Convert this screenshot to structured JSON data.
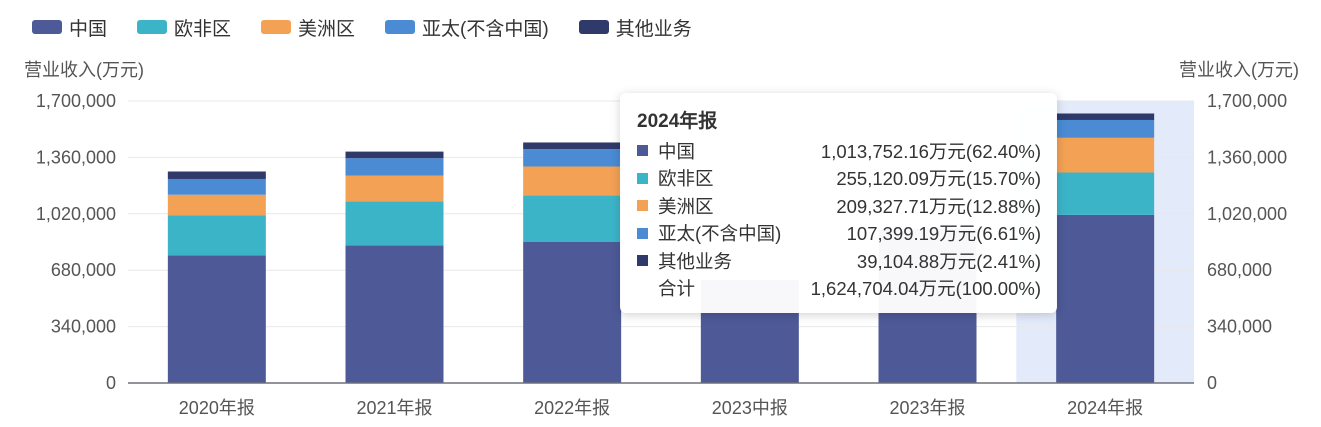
{
  "chart_data": {
    "type": "bar",
    "stacked": true,
    "categories": [
      "2020年报",
      "2021年报",
      "2022年报",
      "2023中报",
      "2023年报",
      "2024年报"
    ],
    "series": [
      {
        "name": "中国",
        "color": "#4e5a98",
        "values": [
          770000,
          830000,
          850000,
          620000,
          930000,
          1013752.16
        ]
      },
      {
        "name": "欧非区",
        "color": "#3cb4c8",
        "values": [
          240000,
          265000,
          280000,
          0,
          0,
          255120.09
        ]
      },
      {
        "name": "美洲区",
        "color": "#f3a154",
        "values": [
          125000,
          155000,
          175000,
          0,
          0,
          209327.71
        ]
      },
      {
        "name": "亚太(不含中国)",
        "color": "#4a8bd4",
        "values": [
          95000,
          105000,
          105000,
          0,
          0,
          107399.19
        ]
      },
      {
        "name": "其他业务",
        "color": "#2f3a6b",
        "values": [
          45000,
          40000,
          40000,
          0,
          0,
          39104.88
        ]
      }
    ],
    "ylabel_left": "营业收入(万元)",
    "ylabel_right": "营业收入(万元)",
    "ylim": [
      0,
      1700000
    ],
    "yticks": [
      "0",
      "340,000",
      "680,000",
      "1,020,000",
      "1,360,000",
      "1,700,000"
    ],
    "yticks_right": [
      "0",
      "340,000",
      "680,000",
      "1,020,000",
      "1,360,000",
      "1,700,000"
    ],
    "highlight_category": "2024年报",
    "grid": true
  },
  "tooltip": {
    "title": "2024年报",
    "rows": [
      {
        "name": "中国",
        "value": "1,013,752.16万元(62.40%)",
        "color": "#4e5a98"
      },
      {
        "name": "欧非区",
        "value": "255,120.09万元(15.70%)",
        "color": "#3cb4c8"
      },
      {
        "name": "美洲区",
        "value": "209,327.71万元(12.88%)",
        "color": "#f3a154"
      },
      {
        "name": "亚太(不含中国)",
        "value": "107,399.19万元(6.61%)",
        "color": "#4a8bd4"
      },
      {
        "name": "其他业务",
        "value": "39,104.88万元(2.41%)",
        "color": "#2f3a6b"
      },
      {
        "name": "合计",
        "value": "1,624,704.04万元(100.00%)",
        "color": ""
      }
    ]
  }
}
